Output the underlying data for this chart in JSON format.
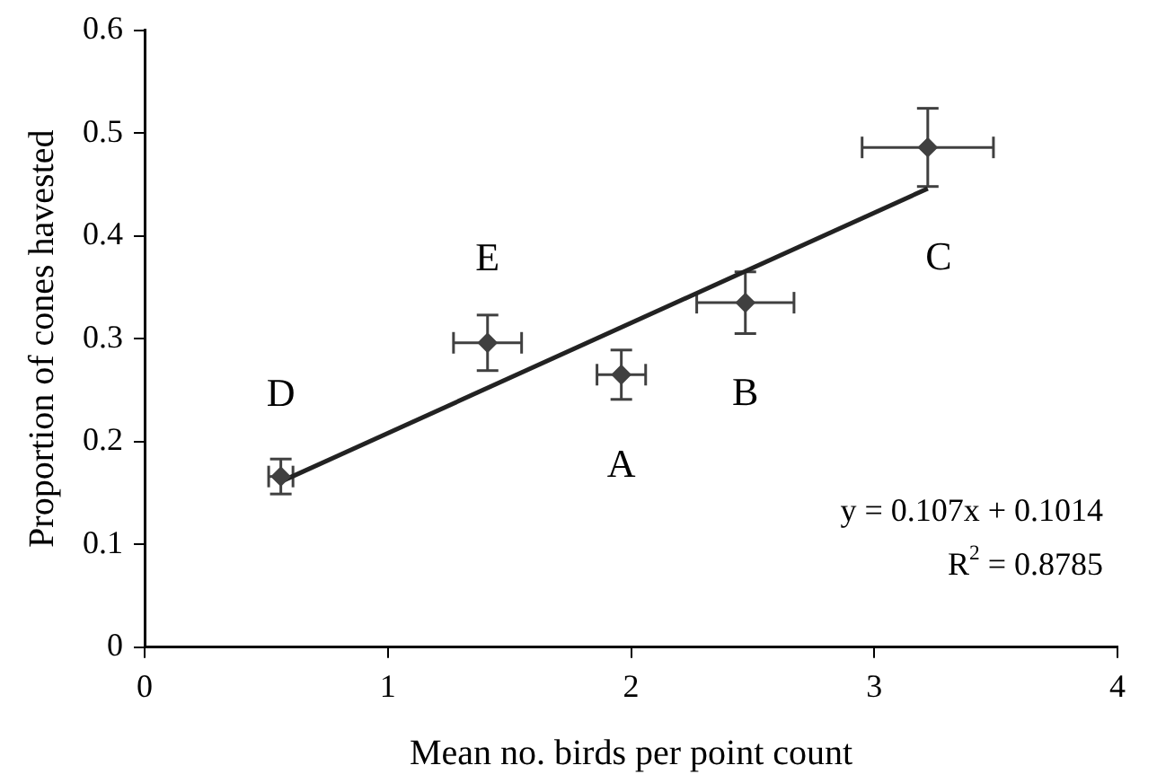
{
  "chart_data": {
    "type": "scatter",
    "xlabel": "Mean no. birds per point count",
    "ylabel": "Proportion of cones havested",
    "xlim": [
      0,
      4
    ],
    "xticks": [
      0,
      1,
      2,
      3,
      4
    ],
    "ylim": [
      0,
      0.6
    ],
    "yticks": [
      0,
      {
        "value": 0.1,
        "label": "0.1"
      },
      {
        "value": 0.2,
        "label": "0.2"
      },
      {
        "value": 0.3,
        "label": "0.3"
      },
      {
        "value": 0.4,
        "label": "0.4"
      },
      {
        "value": 0.5,
        "label": "0.5"
      },
      {
        "value": 0.6,
        "label": "0.6"
      }
    ],
    "grid": false,
    "legend": false,
    "marker": "diamond",
    "series": [
      {
        "color": "#404040",
        "x": [
          0.56,
          1.41,
          1.96,
          2.47,
          3.22
        ],
        "values": [
          0.166,
          0.296,
          0.265,
          0.335,
          0.486
        ],
        "errors": [
          0.017,
          0.027,
          0.024,
          0.03,
          0.038
        ],
        "xerrors": [
          0.05,
          0.14,
          0.1,
          0.2,
          0.27
        ]
      },
      {
        "type": "line",
        "color": "#222222",
        "x": [
          0.56,
          3.22
        ],
        "values": [
          0.161,
          0.446
        ],
        "line_style": "solid",
        "marker": "none"
      }
    ],
    "annotations": [
      {
        "text": "D",
        "x": 0.56,
        "y": 0.166
      },
      {
        "text": "E",
        "x": 1.41,
        "y": 0.296
      },
      {
        "text": "A",
        "x": 1.96,
        "y": 0.265
      },
      {
        "text": "B",
        "x": 2.47,
        "y": 0.335
      },
      {
        "text": "C",
        "x": 3.22,
        "y": 0.486
      },
      "y = 0.107x + 0.1014",
      "R$^{2}$ = 0.8785"
    ]
  }
}
